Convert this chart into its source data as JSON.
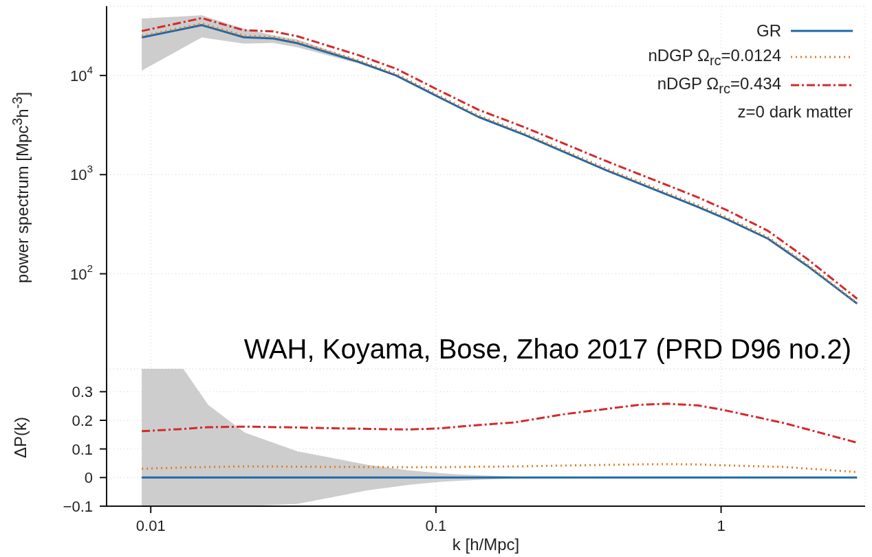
{
  "chart_data": [
    {
      "type": "line",
      "ylabel": "power spectrum [Mpc$^{3}$h$^{-3}$]",
      "log": "xy",
      "grid": true,
      "legend": "top right",
      "tick_labels": "y",
      "annotations": [
        "z=0 dark matter",
        "WAH, Koyama, Bose, Zhao 2017  (PRD D96 no.2)"
      ],
      "xlim": [
        0.007,
        3.2
      ],
      "xticks": [
        0.01,
        0.1,
        1
      ],
      "ylim": [
        11,
        50000
      ],
      "yticks": [
        {
          "value": 100,
          "label": "10$^{2}$"
        },
        {
          "value": 1000,
          "label": "10$^{3}$"
        },
        {
          "value": 10000,
          "label": "10$^{4}$"
        }
      ],
      "x": [
        0.0093,
        0.0151,
        0.0212,
        0.0269,
        0.0328,
        0.0536,
        0.0725,
        0.101,
        0.141,
        0.206,
        0.398,
        0.83,
        1.05,
        1.46,
        2.0,
        3.0
      ],
      "series": [
        {
          "name": "GR",
          "color": "#1f68a8",
          "line_style": "solid",
          "values": [
            24200,
            32200,
            24300,
            23600,
            21100,
            13700,
            10000,
            6170,
            3820,
            2500,
            1100,
            471,
            354,
            226,
            121,
            50
          ],
          "lower": [
            11200,
            24200,
            21000,
            21300,
            19200,
            13200,
            9800,
            6050,
            3820,
            2500,
            1100,
            471,
            354,
            226,
            121,
            50
          ],
          "upper": [
            37500,
            40400,
            29500,
            25500,
            23000,
            14200,
            10200,
            6290,
            3820,
            2500,
            1100,
            471,
            354,
            226,
            121,
            50
          ]
        },
        {
          "name": "nDGP Ω$_{rc}$=0.0124",
          "color": "#e07b20",
          "line_style": "dotted",
          "values": [
            25000,
            33400,
            25200,
            24500,
            21900,
            14200,
            10400,
            6400,
            3960,
            2590,
            1145,
            492,
            369,
            234,
            125,
            51
          ]
        },
        {
          "name": "nDGP Ω$_{rc}$=0.434",
          "color": "#d42a2a",
          "line_style": "dashed",
          "values": [
            28100,
            37900,
            28600,
            27800,
            24800,
            16000,
            11700,
            7230,
            4510,
            2980,
            1360,
            590,
            437,
            271,
            142,
            56
          ]
        }
      ]
    },
    {
      "type": "line",
      "xlabel": "k [h/Mpc]",
      "ylabel": "ΔP(k)",
      "log": "x",
      "grid": true,
      "xlim": [
        0.007,
        3.2
      ],
      "xticks": [
        0.01,
        0.1,
        1
      ],
      "ylim": [
        -0.1,
        0.38
      ],
      "yticks": [
        {
          "value": -0.1,
          "label": "−0.1"
        },
        0,
        0.1,
        0.2,
        0.3
      ],
      "x": [
        0.0093,
        0.013,
        0.0159,
        0.0214,
        0.0326,
        0.058,
        0.081,
        0.104,
        0.12,
        0.19,
        0.284,
        0.515,
        0.65,
        0.83,
        1.0,
        1.67,
        3.0
      ],
      "series": [
        {
          "color": "#1f68a8",
          "line_style": "solid",
          "values": [
            0,
            0,
            0,
            0,
            0,
            0,
            0,
            0,
            0,
            0,
            0,
            0,
            0,
            0,
            0,
            0,
            0
          ],
          "lower": [
            -0.1,
            -0.1,
            -0.1,
            -0.1,
            -0.092,
            -0.044,
            -0.025,
            -0.015,
            -0.011,
            -0.003,
            0,
            0,
            0,
            0,
            0,
            0,
            0
          ],
          "upper": [
            0.38,
            0.38,
            0.254,
            0.157,
            0.092,
            0.044,
            0.025,
            0.015,
            0.011,
            0.003,
            0,
            0,
            0,
            0,
            0,
            0,
            0
          ]
        },
        {
          "color": "#e07b20",
          "line_style": "dotted",
          "values": [
            0.031,
            0.035,
            0.037,
            0.039,
            0.038,
            0.037,
            0.036,
            0.036,
            0.037,
            0.039,
            0.042,
            0.046,
            0.047,
            0.046,
            0.043,
            0.037,
            0.019
          ]
        },
        {
          "color": "#d42a2a",
          "line_style": "dashed",
          "values": [
            0.162,
            0.17,
            0.176,
            0.178,
            0.175,
            0.17,
            0.168,
            0.172,
            0.178,
            0.193,
            0.222,
            0.254,
            0.258,
            0.252,
            0.238,
            0.19,
            0.122
          ]
        }
      ]
    }
  ]
}
